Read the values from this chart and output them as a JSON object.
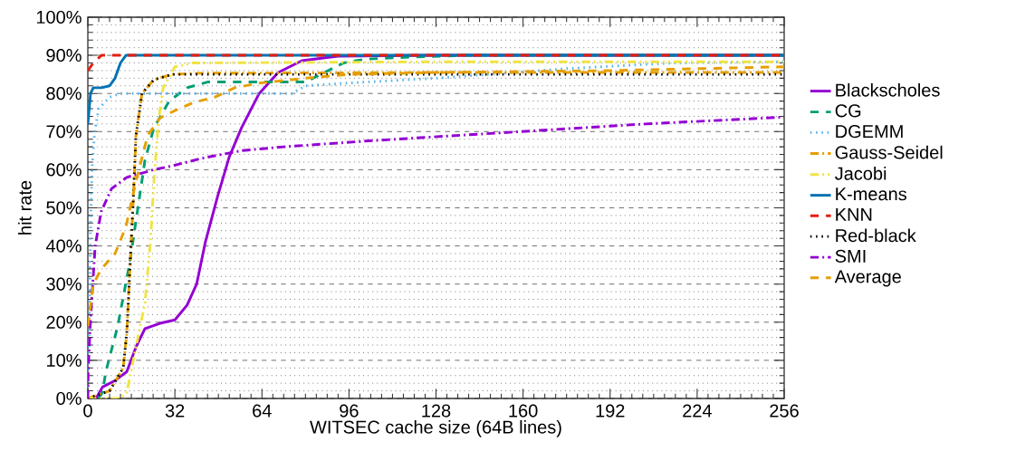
{
  "chart_data": {
    "type": "line",
    "xlabel": "WITSEC cache size (64B lines)",
    "ylabel": "hit rate",
    "xlim": [
      0,
      256
    ],
    "xticks": [
      0,
      32,
      64,
      96,
      128,
      160,
      192,
      224,
      256
    ],
    "ylim": [
      0,
      100
    ],
    "yticks": [
      {
        "value": 0,
        "label": "0%"
      },
      {
        "value": 10,
        "label": "10%"
      },
      {
        "value": 20,
        "label": "20%"
      },
      {
        "value": 30,
        "label": "30%"
      },
      {
        "value": 40,
        "label": "40%"
      },
      {
        "value": 50,
        "label": "50%"
      },
      {
        "value": 60,
        "label": "60%"
      },
      {
        "value": 70,
        "label": "70%"
      },
      {
        "value": 80,
        "label": "80%"
      },
      {
        "value": 90,
        "label": "90%"
      },
      {
        "value": 100,
        "label": "100%"
      }
    ],
    "grid": "y",
    "legend": "right",
    "marker": "none",
    "series": [
      {
        "name": "Blackscholes",
        "color": "#9400d3",
        "line_style": "solid",
        "x": [
          3,
          5.4,
          10,
          14.3,
          17.7,
          21,
          26.5,
          32,
          36.5,
          40,
          43.2,
          47.7,
          52,
          56.5,
          63,
          70,
          78.7,
          92,
          128,
          256
        ],
        "values": [
          0,
          3,
          4.7,
          7,
          13.5,
          18.3,
          19.7,
          20.6,
          24.5,
          30,
          41,
          53,
          63.4,
          71,
          80,
          85.5,
          88.6,
          89.8,
          90,
          90
        ]
      },
      {
        "name": "CG",
        "color": "#009e73",
        "line_style": "dashed",
        "x": [
          4,
          5.4,
          6.6,
          11,
          15.4,
          18.2,
          21,
          24.3,
          29.9,
          36.5,
          44,
          80,
          94,
          102,
          117,
          139,
          256
        ],
        "values": [
          0,
          1.6,
          7,
          19,
          35.6,
          49,
          62.5,
          71,
          78,
          81.5,
          83,
          83,
          88,
          89,
          89.5,
          90,
          90
        ]
      },
      {
        "name": "DGEMM",
        "color": "#56b4e9",
        "line_style": "dotted",
        "x": [
          0,
          0.5,
          1,
          1.5,
          2.5,
          4,
          8,
          12,
          75,
          80,
          95,
          128,
          176,
          215,
          256
        ],
        "values": [
          0,
          20,
          45,
          60,
          70,
          76,
          79,
          80,
          80,
          82,
          82.7,
          84,
          86.5,
          88,
          88.3
        ]
      },
      {
        "name": "Gauss-Seidel",
        "color": "#e69f00",
        "line_style": "dashdot",
        "x": [
          0,
          8,
          13,
          14.3,
          15.4,
          16.5,
          17.7,
          19.9,
          24.3,
          31,
          40,
          128,
          256
        ],
        "values": [
          0,
          2,
          8,
          17,
          33,
          49,
          69,
          80,
          83.6,
          85,
          85.3,
          85.5,
          85.5
        ]
      },
      {
        "name": "Jacobi",
        "color": "#f0e442",
        "line_style": "dashdotdot",
        "x": [
          0,
          12,
          14.3,
          21,
          23,
          24.3,
          26,
          27.7,
          32,
          38.7,
          128,
          256
        ],
        "values": [
          0,
          0,
          1.6,
          25,
          41,
          57,
          73,
          81.5,
          87,
          88,
          88.3,
          88.3
        ]
      },
      {
        "name": "K-means",
        "color": "#0072b2",
        "line_style": "solid",
        "x": [
          0,
          1,
          2,
          5,
          8,
          10,
          12,
          14,
          256
        ],
        "values": [
          72,
          80,
          81.5,
          81.5,
          82,
          84,
          88,
          90,
          90
        ]
      },
      {
        "name": "KNN",
        "color": "#e51e10",
        "line_style": "dashed",
        "x": [
          0,
          2,
          5,
          256
        ],
        "values": [
          86,
          88,
          90,
          90
        ]
      },
      {
        "name": "Red-black",
        "color": "#000000",
        "line_style": "dotted",
        "x": [
          0,
          8,
          13,
          14.3,
          15.4,
          16.5,
          17.7,
          19.9,
          24.3,
          31,
          40,
          256
        ],
        "values": [
          0,
          2,
          8,
          17,
          33,
          49,
          69,
          80,
          83.6,
          85,
          85,
          85
        ]
      },
      {
        "name": "SMI",
        "color": "#9400d3",
        "line_style": "dashdot",
        "x": [
          0,
          0.1,
          1,
          2.7,
          4.9,
          8.7,
          14.3,
          24.3,
          31,
          42,
          56.5,
          72,
          102,
          150,
          205,
          256
        ],
        "values": [
          0,
          7,
          21,
          40,
          49,
          55,
          58,
          60,
          61,
          63,
          65,
          66,
          67.5,
          69.6,
          72,
          73.8
        ]
      },
      {
        "name": "Average",
        "color": "#e69f00",
        "line_style": "dashed",
        "x": [
          0,
          2,
          5,
          10,
          14,
          17.7,
          22,
          26.6,
          32,
          38.7,
          46.6,
          54,
          63,
          80,
          96,
          128,
          192,
          256
        ],
        "values": [
          19,
          30,
          34,
          38,
          45,
          57,
          69,
          73.6,
          75.5,
          77.6,
          79,
          81.5,
          82.7,
          84,
          85,
          85.5,
          86,
          87
        ]
      }
    ]
  }
}
